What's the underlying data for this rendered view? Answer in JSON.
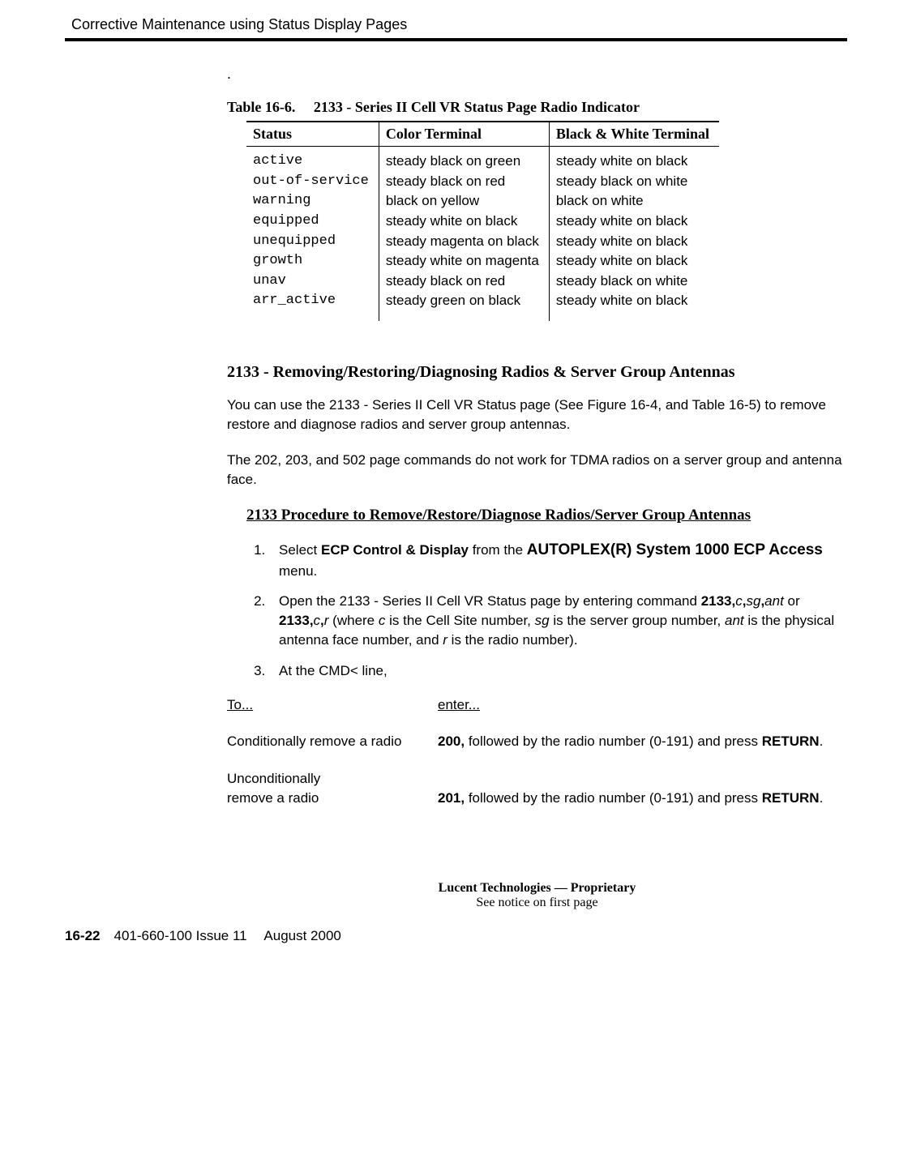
{
  "running_head": "Corrective Maintenance using Status Display Pages",
  "table_caption": "Table 16-6.  2133 - Series II Cell VR Status Page Radio Indicator",
  "table": {
    "headers": [
      "Status",
      "Color Terminal",
      "Black & White Terminal"
    ],
    "status": [
      "active",
      "out-of-service",
      "warning",
      "equipped",
      "unequipped",
      "growth",
      "unav",
      "arr_active"
    ],
    "color": [
      "steady black on green",
      "steady black on red",
      "black on yellow",
      "steady white on black",
      "steady magenta on black",
      "steady white on magenta",
      "steady black on red",
      "steady green on black"
    ],
    "bw": [
      "steady white on black",
      "steady black on white",
      "black on white",
      "steady white on black",
      "steady white on black",
      "steady white on black",
      "steady black on white",
      "steady white on black"
    ]
  },
  "section_head": "2133 - Removing/Restoring/Diagnosing Radios & Server Group Antennas",
  "para1_pre": "You can use the ",
  "para1_mid": "2133 - Series II Cell VR Status",
  "para1_post": " page (See Figure 16-4, and Table 16-5) to remove restore and diagnose radios and server group antennas.",
  "para2": "The 202, 203, and 502 page commands do not work for TDMA radios on a server group and antenna face.",
  "proc_head": "2133 Procedure to Remove/Restore/Diagnose Radios/Server Group Antennas",
  "step1_pre": "Select ",
  "step1_b1": "ECP Control & Display",
  "step1_mid": " from the ",
  "step1_b2": "AUTOPLEX(R) System 1000 ECP Access",
  "step1_post": " menu.",
  "step2_a": "Open the ",
  "step2_b": "2133 - Series II Cell VR Status",
  "step2_c": " page by entering command ",
  "step2_cmd1a": "2133,",
  "step2_c_i": "c",
  "step2_comma": ",",
  "step2_sg_i": "sg",
  "step2_ant_i": "ant",
  "step2_or": " or ",
  "step2_cmd2a": "2133,",
  "step2_r_i": "r",
  "step2_where": " (where ",
  "step2_exp2": " is the Cell Site number, ",
  "step2_exp3": " is the server group number, ",
  "step2_exp4": " is the physical antenna face number, and ",
  "step2_exp5": " is the radio number).",
  "step3_a": "At the ",
  "step3_cmd": "CMD<",
  "step3_b": " line,",
  "cmd_header_left": "To...",
  "cmd_header_right": "enter...",
  "cmd1_left": "Conditionally remove a radio",
  "cmd1_code": "200,",
  "cmd1_rest": " followed by the radio number (0-191) and press ",
  "cmd1_ret": "RETURN",
  "cmd1_dot": ".",
  "cmd2_left_a": "Unconditionally",
  "cmd2_left_b": "remove a radio",
  "cmd2_code": "201,",
  "cmd2_rest": " followed by the radio number (0-191) and press ",
  "cmd2_ret": "RETURN",
  "cmd2_dot": ".",
  "footer1": "Lucent Technologies — Proprietary",
  "footer2": "See notice on first page",
  "pagenum_bold": "16-22",
  "pagenum_rest": " 401-660-100 Issue 11  August 2000"
}
